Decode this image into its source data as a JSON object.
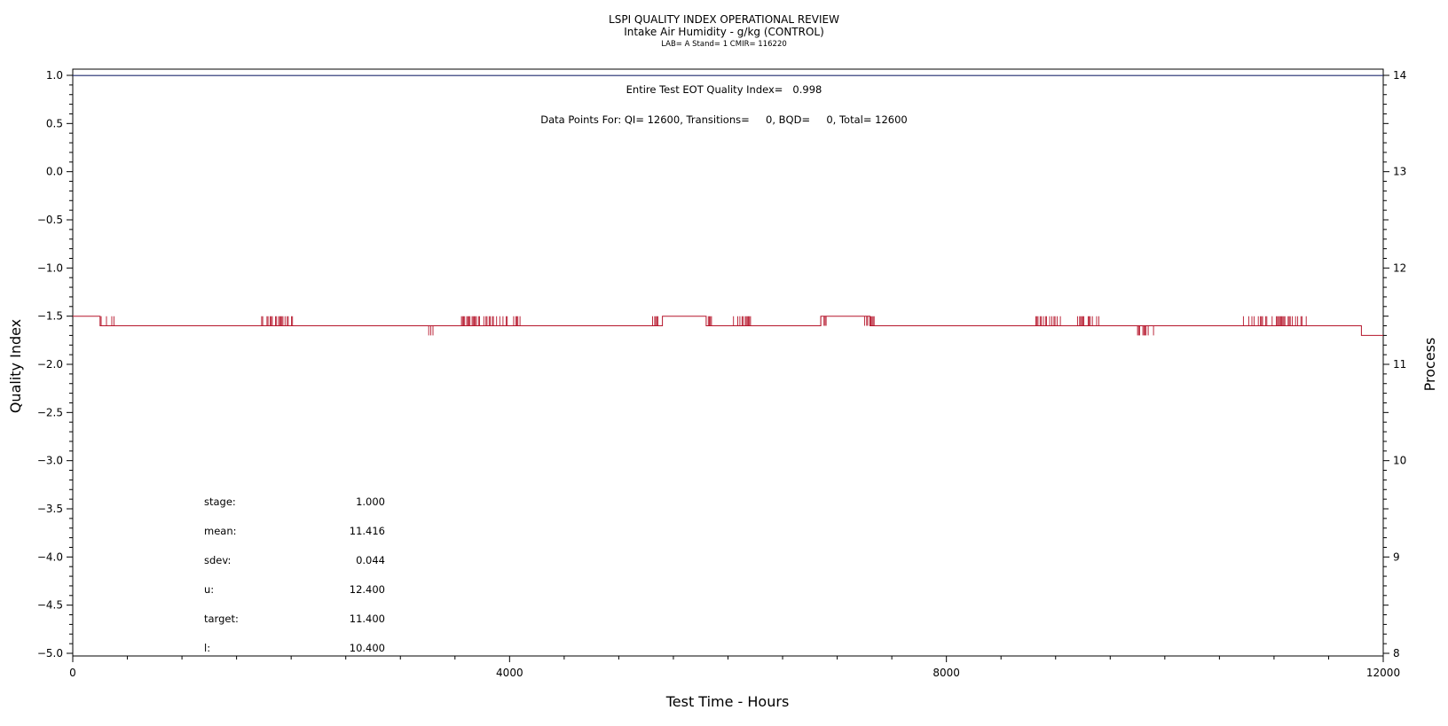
{
  "chart_data": {
    "type": "line",
    "title": "LSPI QUALITY INDEX OPERATIONAL REVIEW",
    "subtitle": "Intake Air Humidity - g/kg (CONTROL)",
    "subtitle2": "LAB= A Stand= 1 CMIR= 116220",
    "xlabel": "Test Time - Hours",
    "ylabel": "Quality Index",
    "y2label": "Process",
    "xlim": [
      0,
      12000
    ],
    "ylim": [
      -5.0,
      1.0
    ],
    "y2lim": [
      8,
      14
    ],
    "x_ticks": [
      "0",
      "4000",
      "8000",
      "12000"
    ],
    "y_ticks": [
      "1.0",
      "0.5",
      "0.0",
      "-0.5",
      "-1.0",
      "-1.5",
      "-2.0",
      "-2.5",
      "-3.0",
      "-3.5",
      "-4.0",
      "-4.5",
      "-5.0"
    ],
    "y2_ticks": [
      "14",
      "13",
      "12",
      "11",
      "10",
      "9",
      "8"
    ],
    "annotations": {
      "eot": "Entire Test EOT Quality Index=   0.998",
      "points": "Data Points For: QI= 12600, Transitions=     0, BQD=     0, Total= 12600"
    },
    "stats": [
      {
        "label": "stage:",
        "value": "1.000"
      },
      {
        "label": "mean:",
        "value": "11.416"
      },
      {
        "label": "sdev:",
        "value": "0.044"
      },
      {
        "label": "u:",
        "value": "12.400"
      },
      {
        "label": "target:",
        "value": "11.400"
      },
      {
        "label": "l:",
        "value": "10.400"
      }
    ],
    "series": [
      {
        "axis": "left",
        "color": "#1f2a6e",
        "x": [
          0,
          12000
        ],
        "y": [
          0.998,
          0.998
        ]
      },
      {
        "axis": "right",
        "color": "#b5152b",
        "base": 11.4,
        "segments": [
          {
            "x": [
              0,
              250
            ],
            "y": 11.5
          },
          {
            "x": [
              250,
              3250
            ],
            "y": 11.4
          },
          {
            "x": [
              3250,
              5400
            ],
            "y": 11.4
          },
          {
            "x": [
              5400,
              5800
            ],
            "y": 11.5
          },
          {
            "x": [
              5800,
              6850
            ],
            "y": 11.4
          },
          {
            "x": [
              6850,
              7300
            ],
            "y": 11.5
          },
          {
            "x": [
              7300,
              9750
            ],
            "y": 11.4
          },
          {
            "x": [
              9750,
              11800
            ],
            "y": 11.4
          },
          {
            "x": [
              11800,
              12000
            ],
            "y": 11.3
          }
        ],
        "noise": [
          {
            "x": [
              250,
              380
            ],
            "y": [
              11.4,
              11.5
            ]
          },
          {
            "x": [
              1720,
              2030
            ],
            "y": [
              11.4,
              11.5
            ]
          },
          {
            "x": [
              3250,
              3300
            ],
            "y": [
              11.3,
              11.4
            ]
          },
          {
            "x": [
              3550,
              4100
            ],
            "y": [
              11.4,
              11.5
            ]
          },
          {
            "x": [
              5300,
              5400
            ],
            "y": [
              11.4,
              11.5
            ]
          },
          {
            "x": [
              5800,
              5880
            ],
            "y": [
              11.4,
              11.5
            ]
          },
          {
            "x": [
              6050,
              6230
            ],
            "y": [
              11.4,
              11.5
            ]
          },
          {
            "x": [
              6850,
              6900
            ],
            "y": [
              11.4,
              11.5
            ]
          },
          {
            "x": [
              7250,
              7350
            ],
            "y": [
              11.4,
              11.5
            ]
          },
          {
            "x": [
              8800,
              9050
            ],
            "y": [
              11.4,
              11.5
            ]
          },
          {
            "x": [
              9200,
              9400
            ],
            "y": [
              11.4,
              11.5
            ]
          },
          {
            "x": [
              9750,
              9900
            ],
            "y": [
              11.3,
              11.4
            ]
          },
          {
            "x": [
              10700,
              11300
            ],
            "y": [
              11.4,
              11.5
            ]
          }
        ]
      }
    ]
  }
}
